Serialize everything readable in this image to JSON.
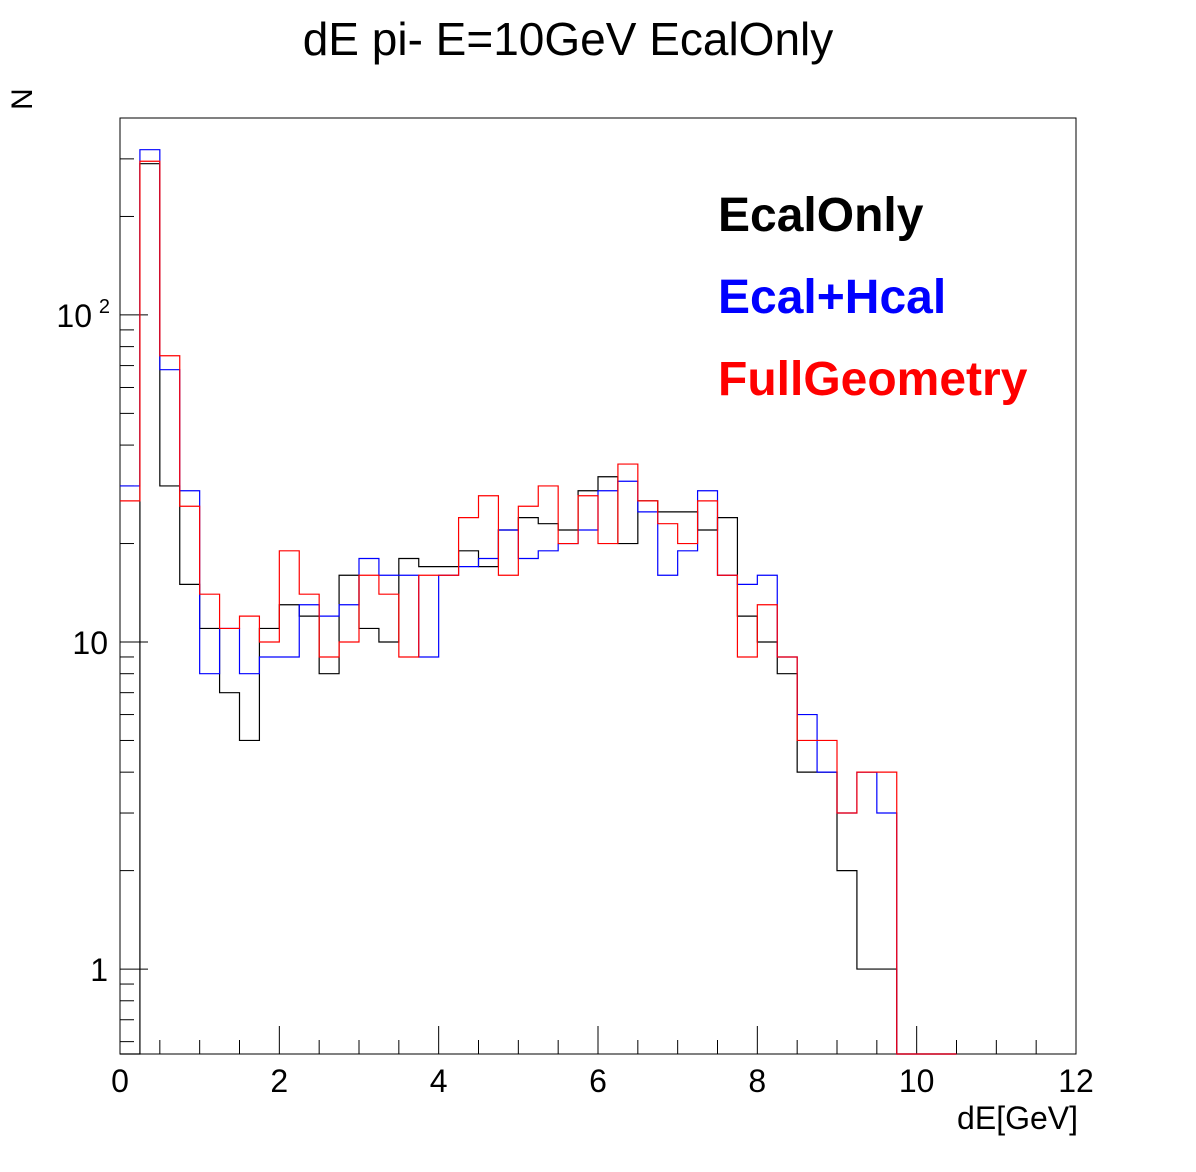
{
  "chart_data": {
    "type": "histogram",
    "title": "dE pi- E=10GeV EcalOnly",
    "xlabel": "dE[GeV]",
    "ylabel": "N",
    "xlim": [
      0,
      12
    ],
    "ylim": [
      0.55,
      400
    ],
    "yscale": "log",
    "x_ticks": [
      "0",
      "2",
      "4",
      "6",
      "8",
      "10",
      "12"
    ],
    "bin_width": 0.25,
    "bin_edges_start": 0,
    "legend": {
      "placement": "top-right"
    },
    "series": [
      {
        "name": "EcalOnly",
        "color": "#000000",
        "values": [
          0,
          290,
          30,
          15,
          11,
          7,
          5,
          11,
          13,
          12,
          8,
          16,
          11,
          10,
          18,
          17,
          17,
          19,
          17,
          22,
          24,
          23,
          22,
          29,
          32,
          20,
          27,
          25,
          25,
          22,
          24,
          12,
          10,
          8,
          4,
          4,
          2,
          1,
          1,
          0.5,
          0,
          0
        ]
      },
      {
        "name": "Ecal+Hcal",
        "color": "#0000ff",
        "values": [
          30,
          320,
          68,
          29,
          8,
          11,
          8,
          9,
          9,
          13,
          12,
          13,
          18,
          16,
          16,
          9,
          16,
          17,
          18,
          22,
          18,
          19,
          20,
          22,
          29,
          31,
          25,
          16,
          19,
          29,
          16,
          15,
          16,
          9,
          6,
          4,
          3,
          4,
          3,
          0.5,
          0,
          0
        ]
      },
      {
        "name": "FullGeometry",
        "color": "#ff0000",
        "values": [
          27,
          295,
          75,
          26,
          14,
          11,
          12,
          10,
          19,
          14,
          9,
          10,
          16,
          14,
          9,
          16,
          16,
          24,
          28,
          16,
          26,
          30,
          20,
          28,
          20,
          35,
          27,
          23,
          20,
          27,
          16,
          9,
          13,
          9,
          5,
          5,
          3,
          4,
          4,
          0.5,
          0,
          0
        ]
      }
    ]
  }
}
